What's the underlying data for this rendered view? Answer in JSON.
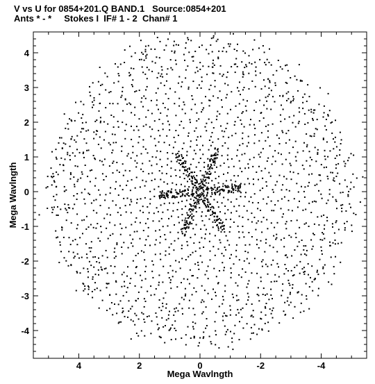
{
  "header": {
    "title_line_1": "V vs U for 0854+201.Q BAND.1   Source:0854+201",
    "title_line_2": "Ants * - *     Stokes I  IF# 1 - 2  Chan# 1"
  },
  "chart_data": {
    "type": "scatter",
    "title": "V vs U for 0854+201.Q BAND.1   Source:0854+201",
    "subtitle": "Ants * - *     Stokes I  IF# 1 - 2  Chan# 1",
    "xlabel": "Mega Wavlngth",
    "ylabel": "Mega Wavlngth",
    "xlim": [
      5.5,
      -5.5
    ],
    "ylim": [
      -4.8,
      4.6
    ],
    "x_reversed": true,
    "xticks": [
      4,
      2,
      0,
      -2,
      -4
    ],
    "xtick_labels": [
      "4",
      "2",
      "0",
      "-2",
      "-4"
    ],
    "yticks": [
      -4,
      -3,
      -2,
      -1,
      0,
      1,
      2,
      3,
      4
    ],
    "ytick_labels": [
      "-4",
      "-3",
      "-2",
      "-1",
      "0",
      "1",
      "2",
      "3",
      "4"
    ],
    "grid": false,
    "marker_color": "#000000",
    "uv_coverage": {
      "description_of_pattern": "symmetric uv-track coverage with six radial arms",
      "arm_count": 6,
      "arm_angles_deg": [
        -5,
        55,
        115
      ],
      "max_radius": 4.6,
      "ring_count": 34
    }
  }
}
